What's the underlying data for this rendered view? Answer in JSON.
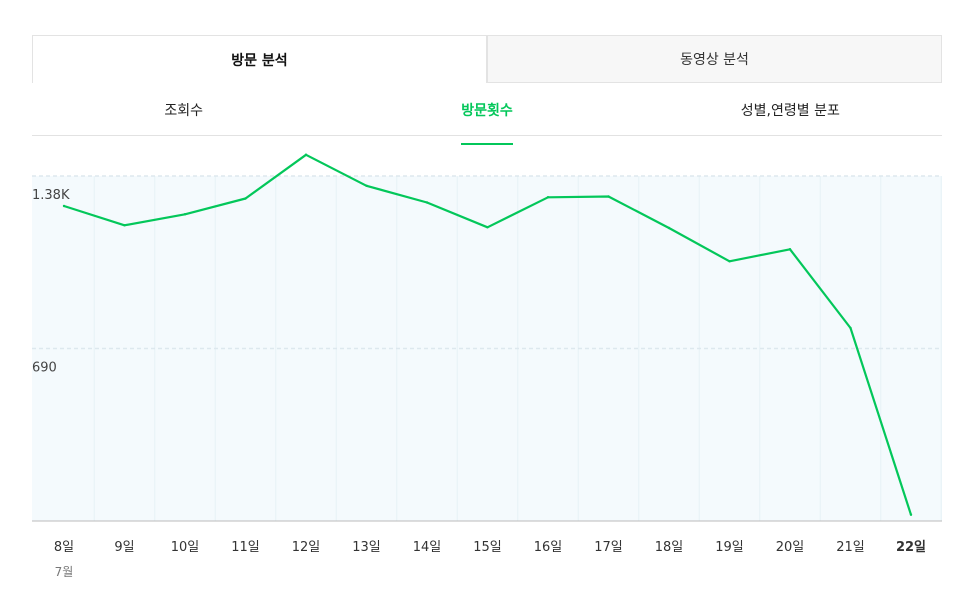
{
  "top_tabs": [
    {
      "label": "방문 분석",
      "active": true
    },
    {
      "label": "동영상 분석",
      "active": false
    }
  ],
  "sub_tabs": [
    {
      "label": "조회수",
      "active": false
    },
    {
      "label": "방문횟수",
      "active": true
    },
    {
      "label": "성별,연령별 분포",
      "active": false
    }
  ],
  "colors": {
    "accent": "#03c75a",
    "plot_bg": "#f4fafd",
    "gridline": "#dde8ee"
  },
  "chart_data": {
    "type": "line",
    "categories": [
      "8일",
      "9일",
      "10일",
      "11일",
      "12일",
      "13일",
      "14일",
      "15일",
      "16일",
      "17일",
      "18일",
      "19일",
      "20일",
      "21일",
      "22일"
    ],
    "month_label": "7월",
    "highlighted_category": "22일",
    "series": [
      {
        "values": [
          1260,
          1183,
          1227,
          1290,
          1465,
          1341,
          1274,
          1175,
          1295,
          1298,
          1172,
          1039,
          1087,
          772,
          25
        ]
      }
    ],
    "yticks": [
      {
        "value": 1380,
        "label": "1.38K"
      },
      {
        "value": 690,
        "label": "690"
      }
    ],
    "ylim": [
      0,
      1380
    ],
    "grid": true
  }
}
